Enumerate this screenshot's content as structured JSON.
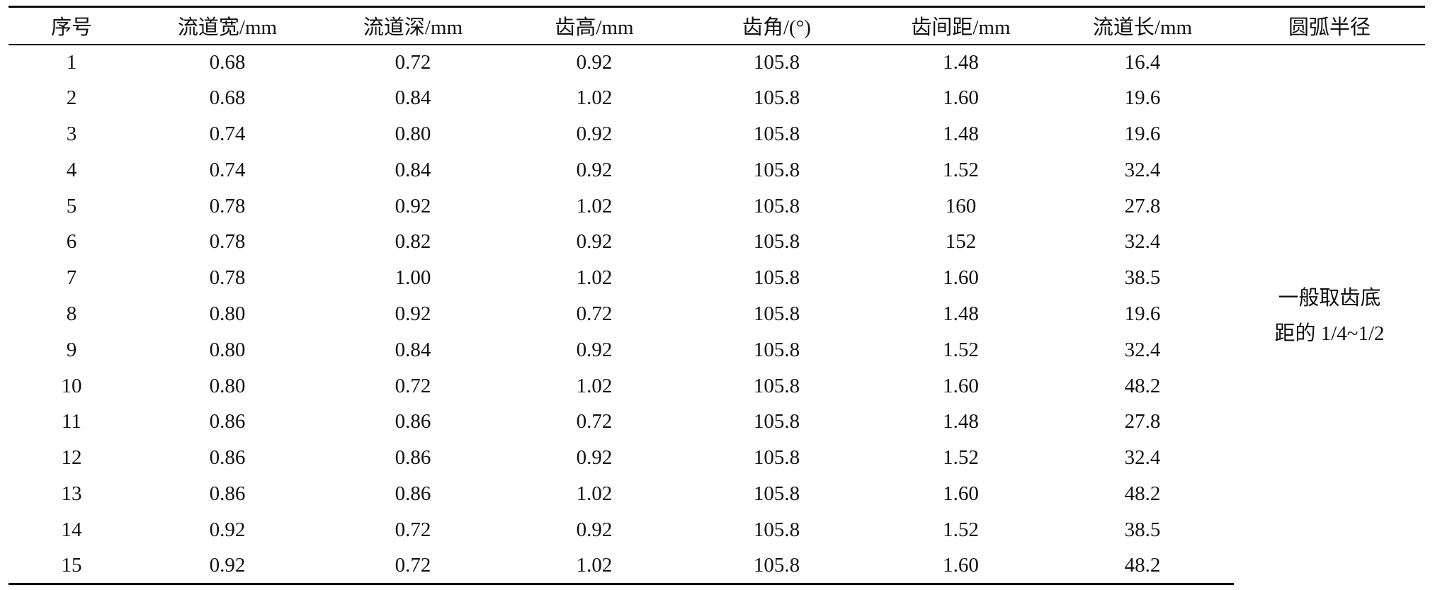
{
  "table": {
    "headers": [
      "序号",
      "流道宽/mm",
      "流道深/mm",
      "齿高/mm",
      "齿角/(°)",
      "齿间距/mm",
      "流道长/mm",
      "圆弧半径"
    ],
    "rows": [
      [
        "1",
        "0.68",
        "0.72",
        "0.92",
        "105.8",
        "1.48",
        "16.4"
      ],
      [
        "2",
        "0.68",
        "0.84",
        "1.02",
        "105.8",
        "1.60",
        "19.6"
      ],
      [
        "3",
        "0.74",
        "0.80",
        "0.92",
        "105.8",
        "1.48",
        "19.6"
      ],
      [
        "4",
        "0.74",
        "0.84",
        "0.92",
        "105.8",
        "1.52",
        "32.4"
      ],
      [
        "5",
        "0.78",
        "0.92",
        "1.02",
        "105.8",
        "160",
        "27.8"
      ],
      [
        "6",
        "0.78",
        "0.82",
        "0.92",
        "105.8",
        "152",
        "32.4"
      ],
      [
        "7",
        "0.78",
        "1.00",
        "1.02",
        "105.8",
        "1.60",
        "38.5"
      ],
      [
        "8",
        "0.80",
        "0.92",
        "0.72",
        "105.8",
        "1.48",
        "19.6"
      ],
      [
        "9",
        "0.80",
        "0.84",
        "0.92",
        "105.8",
        "1.52",
        "32.4"
      ],
      [
        "10",
        "0.80",
        "0.72",
        "1.02",
        "105.8",
        "1.60",
        "48.2"
      ],
      [
        "11",
        "0.86",
        "0.86",
        "0.72",
        "105.8",
        "1.48",
        "27.8"
      ],
      [
        "12",
        "0.86",
        "0.86",
        "0.92",
        "105.8",
        "1.52",
        "32.4"
      ],
      [
        "13",
        "0.86",
        "0.86",
        "1.02",
        "105.8",
        "1.60",
        "48.2"
      ],
      [
        "14",
        "0.92",
        "0.72",
        "0.92",
        "105.8",
        "1.52",
        "38.5"
      ],
      [
        "15",
        "0.92",
        "0.72",
        "1.02",
        "105.8",
        "1.60",
        "48.2"
      ]
    ],
    "merged_note": {
      "line1": "一般取齿底",
      "line2": "距的 1/4~1/2"
    }
  }
}
